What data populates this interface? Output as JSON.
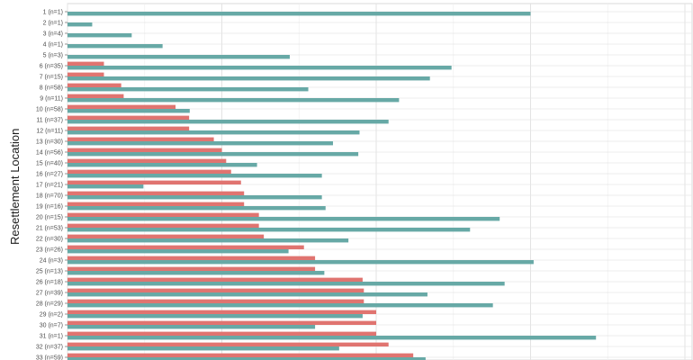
{
  "chart_data": {
    "type": "bar",
    "orientation": "horizontal",
    "ylabel": "Resettlement Location",
    "xlabel": "",
    "xlim": [
      0,
      1
    ],
    "grid": true,
    "categories": [
      "1 (n=1)",
      "2 (n=1)",
      "3 (n=4)",
      "4 (n=1)",
      "5 (n=3)",
      "6 (n=35)",
      "7 (n=15)",
      "8 (n=58)",
      "9 (n=11)",
      "10 (n=58)",
      "11 (n=37)",
      "12 (n=11)",
      "13 (n=30)",
      "14 (n=56)",
      "15 (n=40)",
      "16 (n=27)",
      "17 (n=21)",
      "18 (n=70)",
      "19 (n=16)",
      "20 (n=15)",
      "21 (n=53)",
      "22 (n=30)",
      "23 (n=26)",
      "24 (n=3)",
      "25 (n=13)",
      "26 (n=18)",
      "27 (n=39)",
      "28 (n=29)",
      "29 (n=2)",
      "30 (n=7)",
      "31 (n=1)",
      "32 (n=37)",
      "33 (n=59)"
    ],
    "series": [
      {
        "color": "#e07470",
        "values": [
          0,
          0,
          0,
          0,
          0,
          0.059,
          0.059,
          0.087,
          0.091,
          0.175,
          0.197,
          0.197,
          0.237,
          0.25,
          0.257,
          0.265,
          0.281,
          0.286,
          0.286,
          0.31,
          0.31,
          0.318,
          0.383,
          0.401,
          0.401,
          0.478,
          0.48,
          0.48,
          0.5,
          0.5,
          0.5,
          0.52,
          0.56
        ]
      },
      {
        "color": "#67a9a6",
        "values": [
          0.75,
          0.04,
          0.104,
          0.154,
          0.36,
          0.622,
          0.587,
          0.39,
          0.537,
          0.198,
          0.52,
          0.473,
          0.43,
          0.471,
          0.307,
          0.412,
          0.123,
          0.412,
          0.418,
          0.7,
          0.652,
          0.455,
          0.358,
          0.755,
          0.416,
          0.708,
          0.583,
          0.689,
          0.478,
          0.401,
          0.856,
          0.44,
          0.58
        ]
      }
    ]
  }
}
